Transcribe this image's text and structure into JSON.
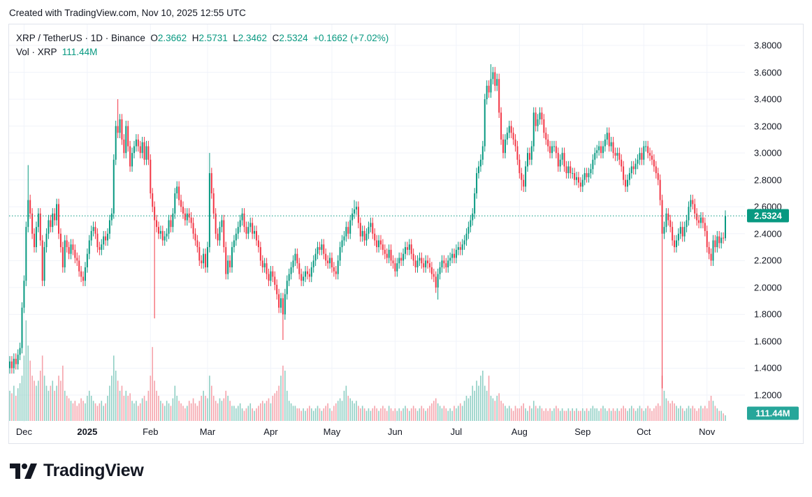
{
  "caption": "Created with TradingView.com, Nov 10, 2025 12:55 UTC",
  "legend": {
    "symbol": "XRP / TetherUS · 1D · Binance",
    "o_label": "O",
    "o": "2.3662",
    "h_label": "H",
    "h": "2.5731",
    "l_label": "L",
    "l": "2.3462",
    "c_label": "C",
    "c": "2.5324",
    "change": "+0.1662 (+7.02%)",
    "vol_label": "Vol · XRP",
    "vol": "111.44M"
  },
  "price_label": "2.5324",
  "volume_label": "111.44M",
  "logo_text": "TradingView",
  "colors": {
    "up": "#089981",
    "down": "#f23645",
    "up_volume": "#8fcfc4",
    "down_volume": "#f5a3ab",
    "price_box": "#089981",
    "volume_box": "#26a69a",
    "grid": "#f0f3fa"
  },
  "chart_data": {
    "type": "candlestick",
    "interval": "1D",
    "end_date": "2025-11-10",
    "ylim": [
      1.1,
      3.9
    ],
    "y_ticks": [
      "3.8000",
      "3.6000",
      "3.4000",
      "3.2000",
      "3.0000",
      "2.8000",
      "2.6000",
      "2.4000",
      "2.2000",
      "2.0000",
      "1.8000",
      "1.6000",
      "1.4000",
      "1.2000"
    ],
    "x_ticks": [
      {
        "label": "Dec",
        "date": "2024-12-01"
      },
      {
        "label": "2025",
        "date": "2025-01-01",
        "year": true
      },
      {
        "label": "Feb",
        "date": "2025-02-01"
      },
      {
        "label": "Mar",
        "date": "2025-03-01"
      },
      {
        "label": "Apr",
        "date": "2025-04-01"
      },
      {
        "label": "May",
        "date": "2025-05-01"
      },
      {
        "label": "Jun",
        "date": "2025-06-01"
      },
      {
        "label": "Jul",
        "date": "2025-07-01"
      },
      {
        "label": "Aug",
        "date": "2025-08-01"
      },
      {
        "label": "Sep",
        "date": "2025-09-01"
      },
      {
        "label": "Oct",
        "date": "2025-10-01"
      },
      {
        "label": "Nov",
        "date": "2025-11-01"
      }
    ],
    "last_price": 2.5324,
    "last_candle": {
      "open": 2.3662,
      "high": 2.5731,
      "low": 2.3462,
      "close": 2.5324
    },
    "extremes": [
      {
        "date": "2024-12-03",
        "high": 2.91
      },
      {
        "date": "2025-01-16",
        "high": 3.4
      },
      {
        "date": "2025-02-03",
        "low": 1.77
      },
      {
        "date": "2025-03-02",
        "high": 3.0
      },
      {
        "date": "2025-04-07",
        "low": 1.61
      },
      {
        "date": "2025-05-12",
        "high": 2.65
      },
      {
        "date": "2025-06-22",
        "low": 1.91
      },
      {
        "date": "2025-07-18",
        "high": 3.66
      },
      {
        "date": "2025-08-02",
        "low": 2.72
      },
      {
        "date": "2025-10-10",
        "low": 1.25
      }
    ],
    "closes": [
      1.45,
      1.4,
      1.47,
      1.43,
      1.5,
      1.55,
      1.85,
      2.05,
      2.45,
      2.65,
      2.55,
      2.4,
      2.3,
      2.45,
      2.55,
      2.35,
      2.05,
      2.3,
      2.4,
      2.5,
      2.45,
      2.55,
      2.5,
      2.62,
      2.4,
      2.3,
      2.15,
      2.35,
      2.3,
      2.25,
      2.32,
      2.28,
      2.22,
      2.2,
      2.12,
      2.08,
      2.05,
      2.15,
      2.25,
      2.35,
      2.42,
      2.45,
      2.4,
      2.3,
      2.28,
      2.32,
      2.38,
      2.35,
      2.4,
      2.5,
      2.55,
      2.95,
      3.2,
      3.15,
      3.25,
      3.1,
      3.0,
      3.2,
      3.05,
      2.9,
      3.0,
      3.05,
      3.1,
      3.05,
      3.0,
      3.08,
      2.95,
      3.05,
      2.95,
      2.7,
      2.6,
      2.5,
      2.45,
      2.4,
      2.42,
      2.35,
      2.38,
      2.4,
      2.5,
      2.45,
      2.55,
      2.7,
      2.75,
      2.65,
      2.6,
      2.55,
      2.5,
      2.55,
      2.52,
      2.48,
      2.4,
      2.35,
      2.3,
      2.2,
      2.18,
      2.25,
      2.15,
      2.3,
      2.85,
      2.7,
      2.55,
      2.4,
      2.35,
      2.45,
      2.5,
      2.3,
      2.1,
      2.2,
      2.15,
      2.3,
      2.35,
      2.4,
      2.45,
      2.5,
      2.55,
      2.45,
      2.4,
      2.45,
      2.48,
      2.4,
      2.42,
      2.35,
      2.3,
      2.2,
      2.15,
      2.18,
      2.1,
      2.05,
      2.12,
      2.08,
      2.02,
      1.95,
      1.85,
      1.92,
      1.8,
      1.95,
      2.05,
      2.1,
      2.15,
      2.2,
      2.25,
      2.18,
      2.1,
      2.05,
      2.08,
      2.12,
      2.1,
      2.08,
      2.15,
      2.2,
      2.25,
      2.3,
      2.28,
      2.32,
      2.25,
      2.2,
      2.18,
      2.22,
      2.15,
      2.12,
      2.1,
      2.2,
      2.3,
      2.35,
      2.38,
      2.45,
      2.4,
      2.5,
      2.55,
      2.58,
      2.6,
      2.48,
      2.38,
      2.42,
      2.35,
      2.4,
      2.45,
      2.48,
      2.4,
      2.35,
      2.3,
      2.35,
      2.32,
      2.28,
      2.25,
      2.22,
      2.28,
      2.2,
      2.18,
      2.12,
      2.18,
      2.22,
      2.2,
      2.25,
      2.3,
      2.28,
      2.32,
      2.25,
      2.2,
      2.15,
      2.2,
      2.22,
      2.18,
      2.15,
      2.2,
      2.18,
      2.15,
      2.1,
      2.08,
      2.0,
      2.1,
      2.15,
      2.2,
      2.18,
      2.15,
      2.2,
      2.22,
      2.25,
      2.22,
      2.28,
      2.3,
      2.28,
      2.32,
      2.35,
      2.4,
      2.45,
      2.5,
      2.55,
      2.7,
      2.85,
      2.9,
      2.95,
      3.05,
      3.4,
      3.5,
      3.45,
      3.55,
      3.6,
      3.5,
      3.55,
      3.3,
      3.1,
      3.0,
      3.1,
      3.15,
      3.2,
      3.15,
      3.1,
      3.05,
      2.95,
      2.85,
      2.8,
      2.75,
      2.9,
      3.0,
      2.95,
      3.05,
      3.3,
      3.2,
      3.25,
      3.3,
      3.25,
      3.15,
      3.1,
      3.05,
      3.0,
      3.05,
      3.05,
      3.0,
      2.9,
      2.95,
      3.0,
      2.9,
      2.85,
      2.9,
      2.85,
      2.85,
      2.8,
      2.82,
      2.78,
      2.75,
      2.8,
      2.85,
      2.82,
      2.85,
      2.88,
      2.95,
      3.0,
      3.02,
      3.05,
      3.0,
      3.05,
      3.1,
      3.15,
      3.05,
      3.08,
      3.0,
      2.98,
      3.0,
      2.95,
      2.9,
      2.8,
      2.75,
      2.8,
      2.85,
      2.9,
      2.88,
      2.92,
      2.95,
      3.0,
      2.95,
      3.05,
      3.05,
      3.0,
      2.98,
      2.95,
      2.9,
      2.85,
      2.8,
      2.65,
      2.4,
      2.45,
      2.55,
      2.5,
      2.45,
      2.35,
      2.3,
      2.35,
      2.4,
      2.45,
      2.38,
      2.45,
      2.5,
      2.6,
      2.65,
      2.62,
      2.55,
      2.5,
      2.48,
      2.52,
      2.48,
      2.42,
      2.3,
      2.25,
      2.2,
      2.35,
      2.3,
      2.38,
      2.33,
      2.37,
      2.3662,
      2.5324
    ],
    "volumes_m": [
      600,
      550,
      700,
      500,
      650,
      750,
      900,
      1300,
      2000,
      1500,
      1200,
      900,
      800,
      700,
      800,
      1000,
      1300,
      900,
      700,
      600,
      700,
      800,
      600,
      700,
      900,
      800,
      1100,
      600,
      500,
      450,
      400,
      350,
      400,
      300,
      350,
      450,
      400,
      350,
      500,
      600,
      500,
      400,
      350,
      300,
      350,
      400,
      300,
      350,
      500,
      700,
      900,
      1300,
      1000,
      800,
      600,
      700,
      500,
      600,
      500,
      550,
      400,
      350,
      400,
      300,
      350,
      450,
      500,
      400,
      600,
      900,
      1470,
      800,
      600,
      500,
      400,
      350,
      300,
      400,
      350,
      300,
      450,
      700,
      500,
      400,
      350,
      300,
      250,
      300,
      400,
      350,
      450,
      350,
      300,
      400,
      500,
      600,
      500,
      450,
      900,
      700,
      500,
      400,
      350,
      450,
      400,
      450,
      600,
      500,
      400,
      300,
      300,
      250,
      300,
      350,
      250,
      200,
      250,
      300,
      350,
      250,
      200,
      250,
      300,
      350,
      400,
      350,
      400,
      450,
      350,
      500,
      550,
      600,
      700,
      900,
      1100,
      1000,
      600,
      400,
      350,
      300,
      300,
      250,
      250,
      200,
      250,
      200,
      250,
      300,
      250,
      200,
      250,
      300,
      250,
      200,
      250,
      300,
      350,
      250,
      200,
      300,
      350,
      400,
      450,
      400,
      600,
      700,
      500,
      450,
      400,
      350,
      400,
      300,
      250,
      300,
      250,
      200,
      250,
      200,
      250,
      300,
      250,
      200,
      250,
      300,
      250,
      200,
      300,
      250,
      200,
      250,
      200,
      250,
      200,
      250,
      300,
      250,
      200,
      250,
      300,
      250,
      200,
      250,
      300,
      250,
      200,
      250,
      300,
      350,
      400,
      450,
      350,
      300,
      250,
      300,
      250,
      200,
      250,
      200,
      300,
      250,
      300,
      350,
      300,
      400,
      500,
      450,
      500,
      700,
      600,
      800,
      700,
      900,
      1000,
      700,
      600,
      900,
      500,
      450,
      400,
      500,
      550,
      400,
      350,
      300,
      250,
      300,
      250,
      200,
      300,
      250,
      250,
      300,
      350,
      250,
      200,
      300,
      250,
      400,
      300,
      250,
      300,
      250,
      200,
      250,
      200,
      250,
      200,
      250,
      300,
      250,
      200,
      250,
      200,
      200,
      250,
      200,
      250,
      200,
      250,
      200,
      200,
      250,
      200,
      250,
      200,
      250,
      300,
      250,
      250,
      200,
      250,
      300,
      250,
      200,
      250,
      200,
      250,
      200,
      250,
      200,
      250,
      300,
      250,
      200,
      250,
      300,
      250,
      200,
      250,
      300,
      250,
      200,
      250,
      300,
      250,
      200,
      250,
      300,
      350,
      300,
      900,
      600,
      450,
      400,
      350,
      400,
      350,
      300,
      250,
      300,
      250,
      200,
      250,
      300,
      250,
      300,
      250,
      200,
      250,
      300,
      250,
      300,
      250,
      400,
      500,
      400,
      300,
      250,
      200,
      200,
      150,
      111.44
    ]
  }
}
